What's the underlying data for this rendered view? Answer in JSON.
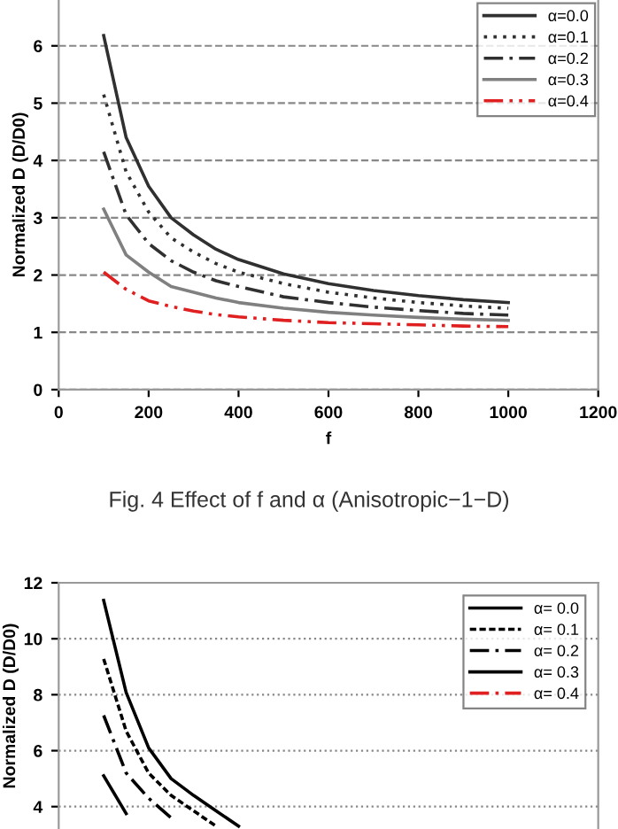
{
  "chart_data": [
    {
      "type": "line",
      "xlabel": "f",
      "ylabel": "Normalized D (D/D0)",
      "x": [
        100,
        150,
        200,
        250,
        300,
        350,
        400,
        500,
        600,
        700,
        800,
        900,
        1000
      ],
      "xlim": [
        0,
        1200
      ],
      "xticks": [
        0,
        200,
        400,
        600,
        800,
        1000,
        1200
      ],
      "ylim": [
        0,
        6.8
      ],
      "yticks": [
        0,
        1,
        2,
        3,
        4,
        5,
        6
      ],
      "grid": "y",
      "legend": "top right",
      "marker": "none",
      "annotations": [
        "Fig. 4 Effect of f and α (Anisotropic−1−D)"
      ],
      "series": [
        {
          "name": "α=0.0",
          "color": "#303030",
          "line_style": "solid",
          "values": [
            6.18,
            4.4,
            3.55,
            3.0,
            2.7,
            2.45,
            2.27,
            2.02,
            1.85,
            1.73,
            1.64,
            1.57,
            1.52
          ]
        },
        {
          "name": "α=0.1",
          "color": "#303030",
          "line_style": "dotted",
          "values": [
            5.15,
            3.8,
            3.1,
            2.65,
            2.4,
            2.2,
            2.05,
            1.85,
            1.7,
            1.6,
            1.52,
            1.46,
            1.42
          ]
        },
        {
          "name": "α=0.2",
          "color": "#303030",
          "line_style": "dashdot",
          "values": [
            4.15,
            3.05,
            2.55,
            2.25,
            2.05,
            1.9,
            1.8,
            1.62,
            1.52,
            1.44,
            1.38,
            1.33,
            1.3
          ]
        },
        {
          "name": "α=0.3",
          "color": "#808080",
          "line_style": "solid",
          "values": [
            3.15,
            2.35,
            2.05,
            1.8,
            1.7,
            1.6,
            1.52,
            1.42,
            1.35,
            1.3,
            1.26,
            1.23,
            1.21
          ]
        },
        {
          "name": "α=0.4",
          "color": "#e02020",
          "line_style": "dashdotdot",
          "values": [
            2.05,
            1.75,
            1.55,
            1.45,
            1.37,
            1.31,
            1.27,
            1.21,
            1.17,
            1.15,
            1.13,
            1.11,
            1.1
          ]
        }
      ]
    },
    {
      "type": "line",
      "ylabel": "Normalized D (D/D0)",
      "x": [
        100,
        150,
        200,
        250,
        300,
        350,
        400
      ],
      "xlim": [
        0,
        1200
      ],
      "ylim": [
        3.2,
        12
      ],
      "yticks": [
        4,
        6,
        8,
        10,
        12
      ],
      "tick_labels": "y",
      "grid": "y",
      "legend": "top right",
      "marker": "none",
      "series": [
        {
          "name": "α= 0.0",
          "color": "#000000",
          "line_style": "solid",
          "values": [
            11.37,
            8.08,
            6.1,
            5.0,
            4.4,
            3.85,
            3.3
          ]
        },
        {
          "name": "α= 0.1",
          "color": "#000000",
          "line_style": "dashed",
          "values": [
            9.28,
            6.7,
            5.2,
            4.4,
            3.85,
            3.3,
            null
          ]
        },
        {
          "name": "α= 0.2",
          "color": "#000000",
          "line_style": "dashdot",
          "values": [
            7.26,
            5.2,
            4.3,
            3.6,
            null,
            null,
            null
          ]
        },
        {
          "name": "α= 0.3",
          "color": "#000000",
          "line_style": "solid",
          "values": [
            5.1,
            3.75,
            null,
            null,
            null,
            null,
            null
          ]
        },
        {
          "name": "α= 0.4",
          "color": "#e02020",
          "line_style": "dashdot",
          "values": [
            null,
            null,
            null,
            null,
            null,
            null,
            null
          ]
        }
      ]
    }
  ]
}
